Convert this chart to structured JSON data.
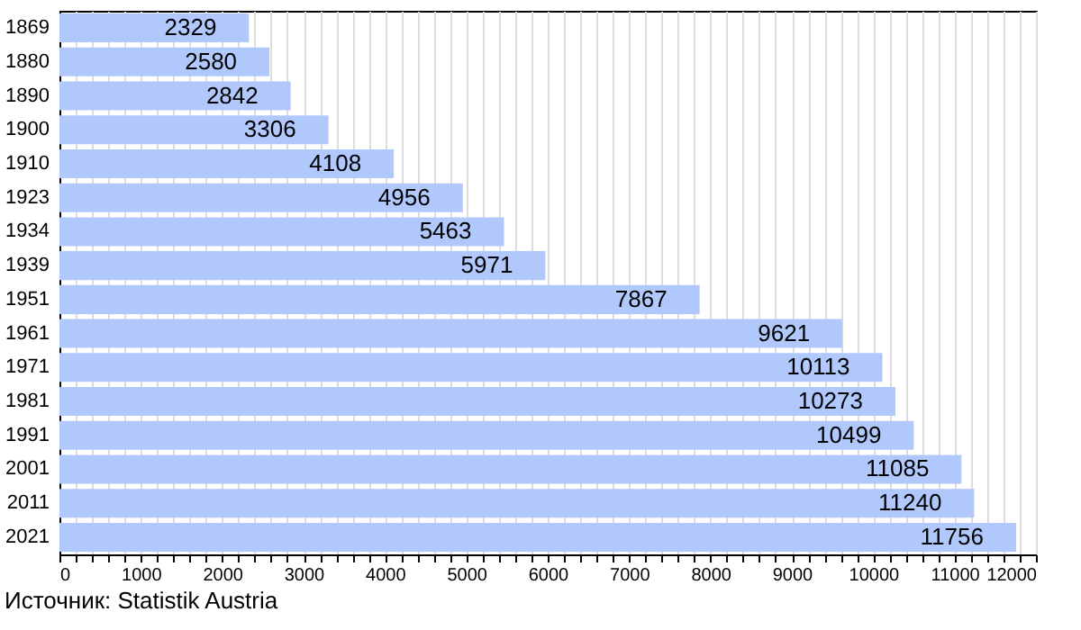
{
  "chart_data": {
    "type": "bar",
    "orientation": "horizontal",
    "categories": [
      "1869",
      "1880",
      "1890",
      "1900",
      "1910",
      "1923",
      "1934",
      "1939",
      "1951",
      "1961",
      "1971",
      "1981",
      "1991",
      "2001",
      "2011",
      "2021"
    ],
    "values": [
      2329,
      2580,
      2842,
      3306,
      4108,
      4956,
      5463,
      5971,
      7867,
      9621,
      10113,
      10273,
      10499,
      11085,
      11240,
      11756
    ],
    "color": "#b0c8fc",
    "data_labels": true,
    "grid": "x",
    "xlim": [
      0,
      12000
    ],
    "xticks": [
      0,
      {
        "value": 200,
        "label": null
      },
      {
        "value": 400,
        "label": null
      },
      {
        "value": 600,
        "label": null
      },
      {
        "value": 800,
        "label": null
      },
      1000,
      {
        "value": 1200,
        "label": null
      },
      {
        "value": 1400,
        "label": null
      },
      {
        "value": 1600,
        "label": null
      },
      {
        "value": 1800,
        "label": null
      },
      2000,
      {
        "value": 2200,
        "label": null
      },
      {
        "value": 2400,
        "label": null
      },
      {
        "value": 2600,
        "label": null
      },
      {
        "value": 2800,
        "label": null
      },
      3000,
      {
        "value": 3200,
        "label": null
      },
      {
        "value": 3400,
        "label": null
      },
      {
        "value": 3600,
        "label": null
      },
      {
        "value": 3800,
        "label": null
      },
      4000,
      {
        "value": 4200,
        "label": null
      },
      {
        "value": 4400,
        "label": null
      },
      {
        "value": 4600,
        "label": null
      },
      {
        "value": 4800,
        "label": null
      },
      5000,
      {
        "value": 5200,
        "label": null
      },
      {
        "value": 5400,
        "label": null
      },
      {
        "value": 5600,
        "label": null
      },
      {
        "value": 5800,
        "label": null
      },
      6000,
      {
        "value": 6200,
        "label": null
      },
      {
        "value": 6400,
        "label": null
      },
      {
        "value": 6600,
        "label": null
      },
      {
        "value": 6800,
        "label": null
      },
      7000,
      {
        "value": 7200,
        "label": null
      },
      {
        "value": 7400,
        "label": null
      },
      {
        "value": 7600,
        "label": null
      },
      {
        "value": 7800,
        "label": null
      },
      8000,
      {
        "value": 8200,
        "label": null
      },
      {
        "value": 8400,
        "label": null
      },
      {
        "value": 8600,
        "label": null
      },
      {
        "value": 8800,
        "label": null
      },
      9000,
      {
        "value": 9200,
        "label": null
      },
      {
        "value": 9400,
        "label": null
      },
      {
        "value": 9600,
        "label": null
      },
      {
        "value": 9800,
        "label": null
      },
      10000,
      {
        "value": 10200,
        "label": null
      },
      {
        "value": 10400,
        "label": null
      },
      {
        "value": 10600,
        "label": null
      },
      {
        "value": 10800,
        "label": null
      },
      11000,
      {
        "value": 11200,
        "label": null
      },
      {
        "value": 11400,
        "label": null
      },
      {
        "value": 11600,
        "label": null
      },
      {
        "value": 11800,
        "label": null
      },
      12000
    ],
    "annotations": [
      "Источник: Statistik Austria"
    ]
  }
}
